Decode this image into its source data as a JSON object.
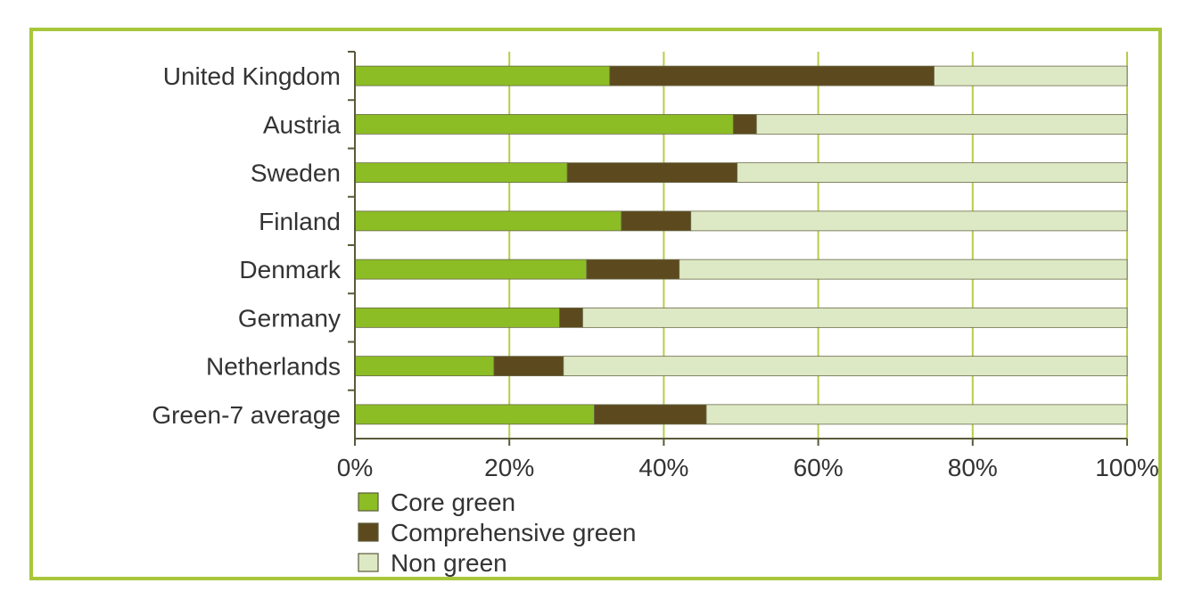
{
  "chart_data": {
    "type": "bar",
    "orientation": "horizontal",
    "stacked": true,
    "categories": [
      "United Kingdom",
      "Austria",
      "Sweden",
      "Finland",
      "Denmark",
      "Germany",
      "Netherlands",
      "Green-7 average"
    ],
    "series": [
      {
        "name": "Core green",
        "color": "#8cbd25",
        "values": [
          33,
          49,
          27.5,
          34.5,
          30,
          26.5,
          18,
          31
        ]
      },
      {
        "name": "Comprehensive green",
        "color": "#5c4a1e",
        "values": [
          42,
          3,
          22,
          9,
          12,
          3,
          9,
          14.5
        ]
      },
      {
        "name": "Non green",
        "color": "#dde8c4",
        "values": [
          25,
          48,
          50.5,
          56.5,
          58,
          70.5,
          73,
          54.5
        ]
      }
    ],
    "x_ticks": [
      "0%",
      "20%",
      "40%",
      "60%",
      "80%",
      "100%"
    ],
    "xlim": [
      0,
      100
    ],
    "grid": true,
    "legend_position": "bottom-left",
    "colors": {
      "gridline": "#b5cf4a",
      "axis": "#5a5a3a",
      "frame": "#a8c63c"
    }
  }
}
